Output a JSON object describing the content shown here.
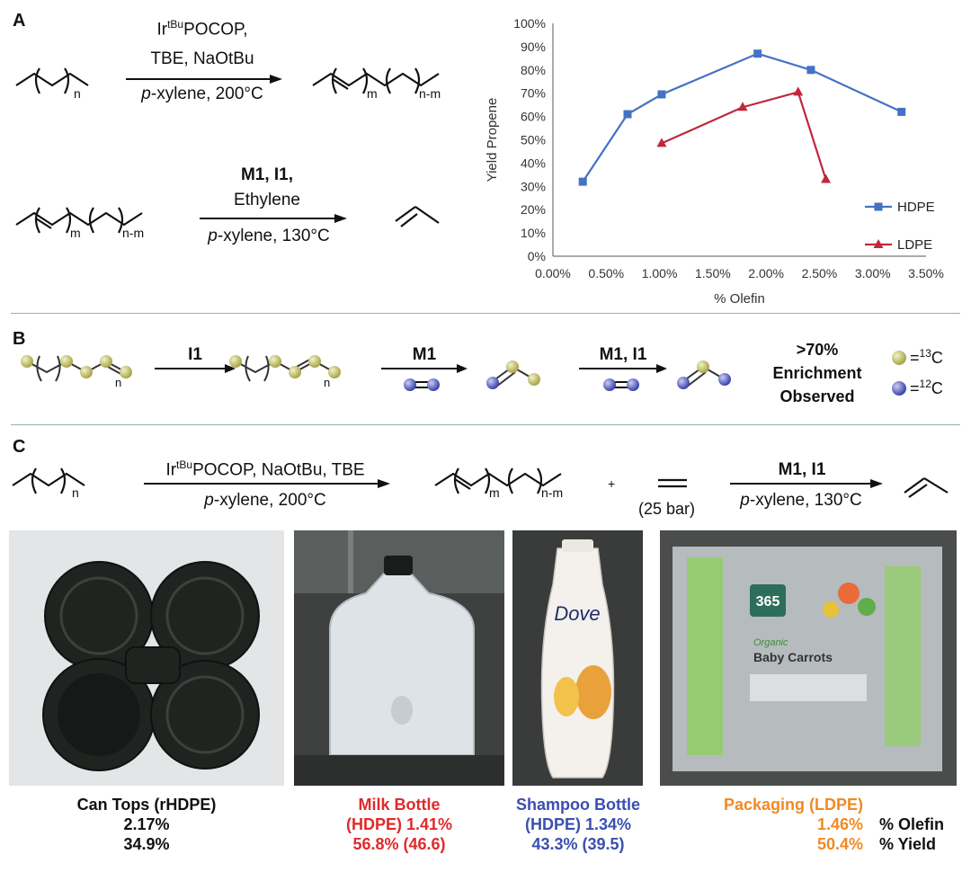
{
  "panels": {
    "a": "A",
    "b": "B",
    "c": "C"
  },
  "panel_a": {
    "rxn1": {
      "catalyst": "Ir",
      "catalyst_sup": "tBu",
      "catalyst_rest": "POCOP,",
      "reagents": "TBE, NaOtBu",
      "solvent_italic": "p",
      "solvent_rest": "-xylene, 200°C"
    },
    "rxn2": {
      "line1": "M1, I1,",
      "line2": "Ethylene",
      "solvent_italic": "p",
      "solvent_rest": "-xylene, 130°C"
    },
    "subscripts": {
      "n": "n",
      "m": "m",
      "nm": "n-m"
    }
  },
  "chart_data": {
    "type": "line",
    "title": "",
    "xlabel": "% Olefin",
    "ylabel": "Yield Propene",
    "xlim": [
      0,
      3.5
    ],
    "ylim": [
      0,
      100
    ],
    "x_ticks": [
      "0.00%",
      "0.50%",
      "1.00%",
      "1.50%",
      "2.00%",
      "2.50%",
      "3.00%",
      "3.50%"
    ],
    "y_ticks": [
      "0%",
      "10%",
      "20%",
      "30%",
      "40%",
      "50%",
      "60%",
      "70%",
      "80%",
      "90%",
      "100%"
    ],
    "legend_position": "right",
    "series": [
      {
        "name": "HDPE",
        "color": "#4472c4",
        "marker": "square",
        "x": [
          0.28,
          0.7,
          1.02,
          1.92,
          2.42,
          3.27
        ],
        "y": [
          32,
          61,
          69.5,
          87,
          80,
          62
        ]
      },
      {
        "name": "LDPE",
        "color": "#c0283a",
        "marker": "triangle",
        "x": [
          1.02,
          1.78,
          2.3,
          2.56
        ],
        "y": [
          48.5,
          64,
          70.5,
          33
        ]
      }
    ]
  },
  "panel_b": {
    "step1": "I1",
    "step2": "M1",
    "step3": "M1, I1",
    "sub_n": "n",
    "result": [
      "&gt;70%",
      "Enrichment",
      "Observed"
    ],
    "legend": [
      {
        "label": "=",
        "sup": "13",
        "suffix": "C",
        "color": "#c9c76a"
      },
      {
        "label": "=",
        "sup": "12",
        "suffix": "C",
        "color": "#5b63c9"
      }
    ]
  },
  "panel_c": {
    "rxn1": {
      "catalyst": "Ir",
      "catalyst_sup": "tBu",
      "catalyst_rest": "POCOP, NaOtBu, TBE",
      "solvent_italic": "p",
      "solvent_rest": "-xylene, 200°C"
    },
    "plus": "+",
    "pressure": "(25 bar)",
    "rxn2": {
      "reagent": "M1, I1",
      "solvent_italic": "p",
      "solvent_rest": "-xylene, 130°C"
    },
    "photo_text": {
      "dove": "Dove",
      "brand365": "365",
      "organic": "Organic",
      "product": "Baby Carrots"
    },
    "samples": [
      {
        "name": "Can Tops (rHDPE)",
        "olefin": "2.17%",
        "yield": "34.9%",
        "color": "#111111"
      },
      {
        "name": "Milk Bottle",
        "name2": "(HDPE) 1.41%",
        "yield": "56.8% (46.6)",
        "color": "#e02a2a"
      },
      {
        "name": "Shampoo Bottle",
        "name2": "(HDPE) 1.34%",
        "yield": "43.3% (39.5)",
        "color": "#3a4fb0"
      },
      {
        "name": "Packaging (LDPE)",
        "olefin": "1.46%",
        "yield": "50.4%",
        "color": "#f08a24"
      }
    ],
    "row_labels": {
      "olefin": "% Olefin",
      "yield": "% Yield"
    }
  }
}
